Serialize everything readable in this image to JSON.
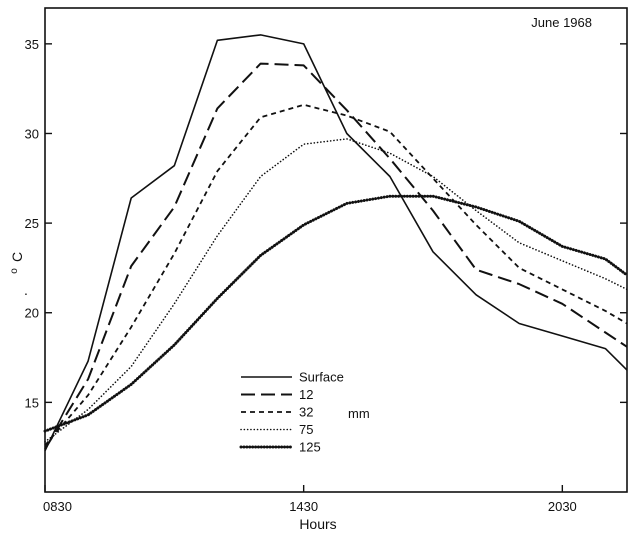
{
  "chart_data": {
    "type": "line",
    "title": "",
    "annotation": "June 1968",
    "xlabel": "Hours",
    "ylabel_main": "C",
    "ylabel_super": "o",
    "ylabel_dot": ".",
    "legend_unit": "mm",
    "xlim": [
      8.5,
      22.0
    ],
    "ylim": [
      10.0,
      37.0
    ],
    "x_ticks": [
      {
        "value": 8.5,
        "label": "0830"
      },
      {
        "value": 14.5,
        "label": "1430"
      },
      {
        "value": 20.5,
        "label": "2030"
      }
    ],
    "y_ticks": [
      {
        "value": 15,
        "label": "15"
      },
      {
        "value": 20,
        "label": "20"
      },
      {
        "value": 25,
        "label": "25"
      },
      {
        "value": 30,
        "label": "30"
      },
      {
        "value": 35,
        "label": "35"
      }
    ],
    "grid": false,
    "legend_position": "lower-center",
    "series": [
      {
        "name": "Surface",
        "style": "solid",
        "x": [
          8.5,
          9.5,
          10.5,
          11.5,
          12.5,
          13.5,
          14.5,
          15.5,
          16.5,
          17.5,
          18.5,
          19.5,
          20.5,
          21.5,
          22.0
        ],
        "y": [
          12.3,
          17.3,
          26.4,
          28.2,
          35.2,
          35.5,
          35.0,
          30.0,
          27.6,
          23.4,
          21.0,
          19.4,
          18.7,
          18.0,
          16.8
        ]
      },
      {
        "name": "12",
        "style": "longdash",
        "x": [
          8.5,
          9.5,
          10.5,
          11.5,
          12.5,
          13.5,
          14.5,
          15.5,
          16.5,
          17.5,
          18.5,
          19.5,
          20.5,
          21.5,
          22.0
        ],
        "y": [
          12.4,
          16.3,
          22.6,
          25.9,
          31.4,
          33.9,
          33.8,
          31.3,
          28.6,
          25.7,
          22.4,
          21.6,
          20.5,
          18.9,
          18.1
        ]
      },
      {
        "name": "32",
        "style": "dash",
        "x": [
          8.5,
          9.5,
          10.5,
          11.5,
          12.5,
          13.5,
          14.5,
          15.5,
          16.5,
          17.5,
          18.5,
          19.5,
          20.5,
          21.5,
          22.0
        ],
        "y": [
          12.6,
          15.4,
          19.2,
          23.3,
          27.9,
          30.9,
          31.6,
          31.0,
          30.1,
          27.5,
          24.9,
          22.5,
          21.3,
          20.1,
          19.4
        ]
      },
      {
        "name": "75",
        "style": "dot",
        "x": [
          8.5,
          9.5,
          10.5,
          11.5,
          12.5,
          13.5,
          14.5,
          15.5,
          16.5,
          17.5,
          18.5,
          19.5,
          20.5,
          21.5,
          22.0
        ],
        "y": [
          12.8,
          14.6,
          17.0,
          20.5,
          24.3,
          27.6,
          29.4,
          29.7,
          28.9,
          27.6,
          25.7,
          23.9,
          22.9,
          21.9,
          21.3
        ]
      },
      {
        "name": "125",
        "style": "heavydot",
        "x": [
          8.5,
          9.5,
          10.5,
          11.5,
          12.5,
          13.5,
          14.5,
          15.5,
          16.5,
          17.5,
          18.5,
          19.5,
          20.5,
          21.5,
          22.0
        ],
        "y": [
          13.4,
          14.3,
          16.0,
          18.2,
          20.8,
          23.2,
          24.9,
          26.1,
          26.5,
          26.5,
          25.9,
          25.1,
          23.7,
          23.0,
          22.1
        ]
      }
    ]
  }
}
